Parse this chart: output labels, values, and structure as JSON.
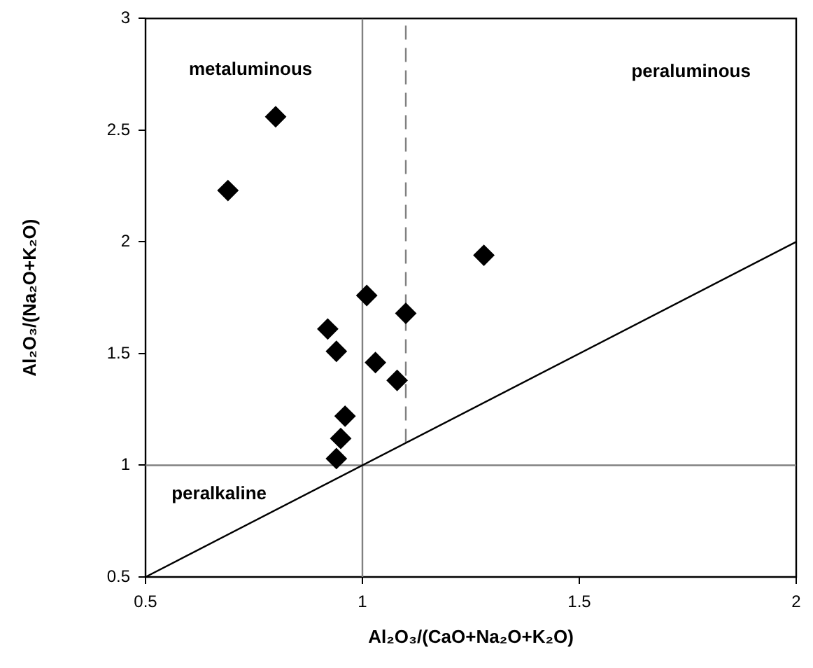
{
  "chart_data": {
    "type": "scatter",
    "xlabel": "Al₂O₃/(CaO+Na₂O+K₂O)",
    "ylabel": "Al₂O₃/(Na₂O+K₂O)",
    "xlim": [
      0.5,
      2
    ],
    "xticks": [
      0.5,
      1,
      1.5,
      2
    ],
    "ylim": [
      0.5,
      3
    ],
    "yticks": [
      0.5,
      1,
      1.5,
      2,
      2.5,
      3
    ],
    "grid": false,
    "legend": false,
    "marker": "diamond",
    "series": [
      {
        "color": "#000000",
        "x": [
          0.69,
          0.8,
          1.28,
          1.01,
          1.1,
          0.92,
          0.94,
          1.03,
          1.08,
          0.96,
          0.95,
          0.94
        ],
        "values": [
          2.23,
          2.56,
          1.94,
          1.76,
          1.68,
          1.61,
          1.51,
          1.46,
          1.38,
          1.22,
          1.12,
          1.03
        ]
      },
      {
        "type": "line",
        "color": "#000000",
        "x": [
          0.5,
          2
        ],
        "values": [
          0.5,
          2
        ],
        "line_style": "solid",
        "marker": "none"
      },
      {
        "type": "line",
        "color": "#808080",
        "x": [
          1.1,
          1.1
        ],
        "values": [
          1.1,
          3
        ],
        "line_style": "dashed",
        "marker": "none"
      },
      {
        "type": "line",
        "color": "#808080",
        "x": [
          1,
          1
        ],
        "values": [
          0.5,
          3
        ],
        "line_style": "solid",
        "marker": "none"
      },
      {
        "type": "line",
        "color": "#808080",
        "x": [
          0.5,
          2
        ],
        "values": [
          1,
          1
        ],
        "line_style": "solid",
        "marker": "none"
      }
    ],
    "annotations": [
      "metaluminous",
      "peraluminous",
      "peralkaline"
    ]
  }
}
